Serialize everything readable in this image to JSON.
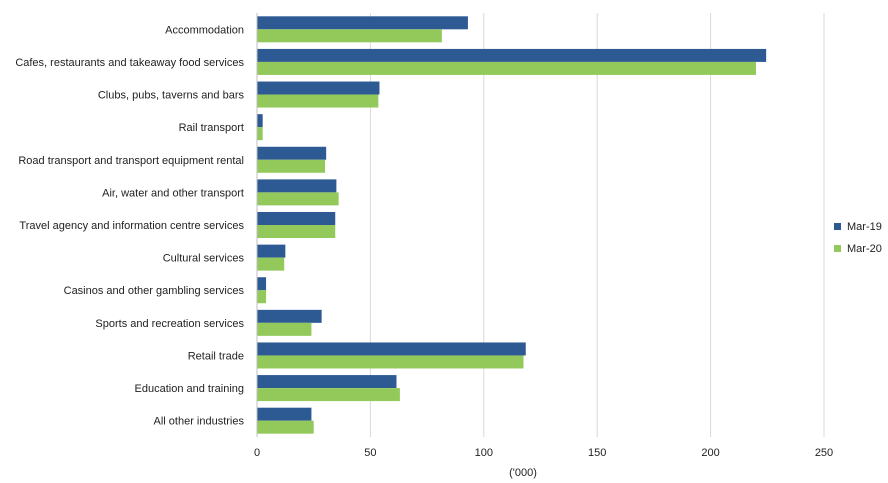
{
  "chart_data": {
    "type": "bar",
    "orientation": "horizontal",
    "categories": [
      "Accommodation",
      "Cafes, restaurants and takeaway food services",
      "Clubs, pubs, taverns and bars",
      "Rail transport",
      "Road transport and transport equipment rental",
      "Air, water and other transport",
      "Travel agency and information centre services",
      "Cultural services",
      "Casinos and other gambling services",
      "Sports and recreation services",
      "Retail trade",
      "Education and training",
      "All other industries"
    ],
    "series": [
      {
        "name": "Mar-19",
        "color": "#2e5a94",
        "values": [
          93,
          224.5,
          54,
          2.5,
          30.5,
          35,
          34.5,
          12.5,
          4,
          28.5,
          118.5,
          61.5,
          24
        ]
      },
      {
        "name": "Mar-20",
        "color": "#92c95a",
        "values": [
          81.5,
          220,
          53.5,
          2.5,
          30,
          36,
          34.5,
          12,
          4,
          24,
          117.5,
          63,
          25
        ]
      }
    ],
    "title": "",
    "xlabel": "('000)",
    "ylabel": "",
    "xlim": [
      0,
      250
    ],
    "xticks": [
      "0",
      "50",
      "100",
      "150",
      "200",
      "250"
    ],
    "grid": "vertical",
    "legend": "right"
  }
}
